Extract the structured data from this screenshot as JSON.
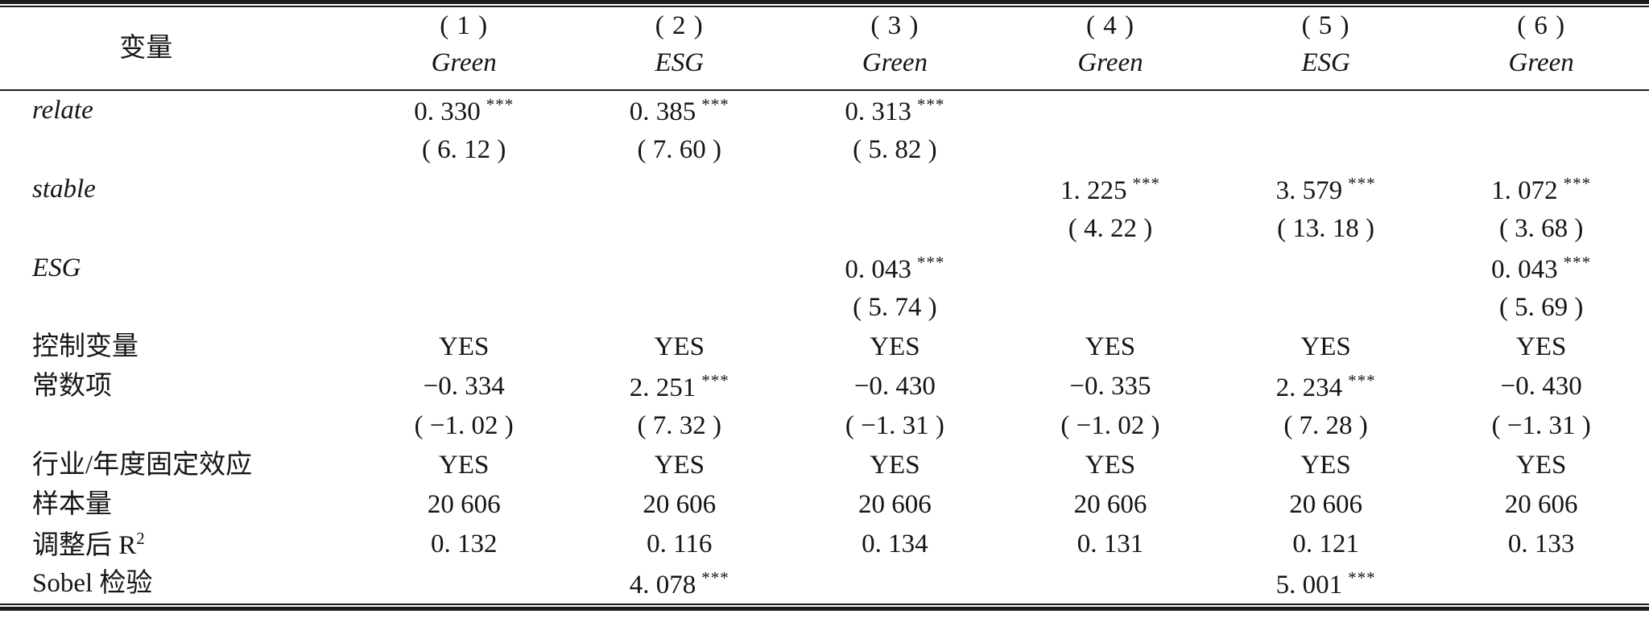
{
  "table": {
    "header": {
      "variable_label": "变量",
      "columns": [
        {
          "number": "( 1 )",
          "dependent": "Green"
        },
        {
          "number": "( 2 )",
          "dependent": "ESG"
        },
        {
          "number": "( 3 )",
          "dependent": "Green"
        },
        {
          "number": "( 4 )",
          "dependent": "Green"
        },
        {
          "number": "( 5 )",
          "dependent": "ESG"
        },
        {
          "number": "( 6 )",
          "dependent": "Green"
        }
      ]
    },
    "rows": [
      {
        "id": "relate-coef",
        "label": "relate",
        "italic": true,
        "cells": [
          {
            "t": "0. 330",
            "s": "***"
          },
          {
            "t": "0. 385",
            "s": "***"
          },
          {
            "t": "0. 313",
            "s": "***"
          },
          null,
          null,
          null
        ]
      },
      {
        "id": "relate-t",
        "label": "",
        "italic": false,
        "cells": [
          {
            "t": "( 6. 12 )"
          },
          {
            "t": "( 7. 60 )"
          },
          {
            "t": "( 5. 82 )"
          },
          null,
          null,
          null
        ]
      },
      {
        "id": "stable-coef",
        "label": "stable",
        "italic": true,
        "cells": [
          null,
          null,
          null,
          {
            "t": "1. 225",
            "s": "***"
          },
          {
            "t": "3. 579",
            "s": "***"
          },
          {
            "t": "1. 072",
            "s": "***"
          }
        ]
      },
      {
        "id": "stable-t",
        "label": "",
        "italic": false,
        "cells": [
          null,
          null,
          null,
          {
            "t": "( 4. 22 )"
          },
          {
            "t": "( 13. 18 )"
          },
          {
            "t": "( 3. 68 )"
          }
        ]
      },
      {
        "id": "esg-coef",
        "label": "ESG",
        "italic": true,
        "cells": [
          null,
          null,
          {
            "t": "0. 043",
            "s": "***"
          },
          null,
          null,
          {
            "t": "0. 043",
            "s": "***"
          }
        ]
      },
      {
        "id": "esg-t",
        "label": "",
        "italic": false,
        "cells": [
          null,
          null,
          {
            "t": "( 5. 74 )"
          },
          null,
          null,
          {
            "t": "( 5. 69 )"
          }
        ]
      },
      {
        "id": "controls",
        "label": "控制变量",
        "italic": false,
        "cells": [
          {
            "t": "YES"
          },
          {
            "t": "YES"
          },
          {
            "t": "YES"
          },
          {
            "t": "YES"
          },
          {
            "t": "YES"
          },
          {
            "t": "YES"
          }
        ]
      },
      {
        "id": "constant-coef",
        "label": "常数项",
        "italic": false,
        "cells": [
          {
            "t": "−0. 334"
          },
          {
            "t": "2. 251",
            "s": "***"
          },
          {
            "t": "−0. 430"
          },
          {
            "t": "−0. 335"
          },
          {
            "t": "2. 234",
            "s": "***"
          },
          {
            "t": "−0. 430"
          }
        ]
      },
      {
        "id": "constant-t",
        "label": "",
        "italic": false,
        "cells": [
          {
            "t": "( −1. 02 )"
          },
          {
            "t": "( 7. 32 )"
          },
          {
            "t": "( −1. 31 )"
          },
          {
            "t": "( −1. 02 )"
          },
          {
            "t": "( 7. 28 )"
          },
          {
            "t": "( −1. 31 )"
          }
        ]
      },
      {
        "id": "fixed-effects",
        "label": "行业/年度固定效应",
        "italic": false,
        "cells": [
          {
            "t": "YES"
          },
          {
            "t": "YES"
          },
          {
            "t": "YES"
          },
          {
            "t": "YES"
          },
          {
            "t": "YES"
          },
          {
            "t": "YES"
          }
        ]
      },
      {
        "id": "sample-size",
        "label": "样本量",
        "italic": false,
        "cells": [
          {
            "t": "20 606"
          },
          {
            "t": "20 606"
          },
          {
            "t": "20 606"
          },
          {
            "t": "20 606"
          },
          {
            "t": "20 606"
          },
          {
            "t": "20 606"
          }
        ]
      },
      {
        "id": "adj-r2",
        "label": "调整后 R",
        "label_sup": "2",
        "italic": false,
        "cells": [
          {
            "t": "0. 132"
          },
          {
            "t": "0. 116"
          },
          {
            "t": "0. 134"
          },
          {
            "t": "0. 131"
          },
          {
            "t": "0. 121"
          },
          {
            "t": "0. 133"
          }
        ]
      },
      {
        "id": "sobel",
        "label": "Sobel 检验",
        "italic": false,
        "cells": [
          null,
          {
            "t": "4. 078",
            "s": "***"
          },
          null,
          null,
          {
            "t": "5. 001",
            "s": "***"
          },
          null
        ]
      }
    ]
  }
}
